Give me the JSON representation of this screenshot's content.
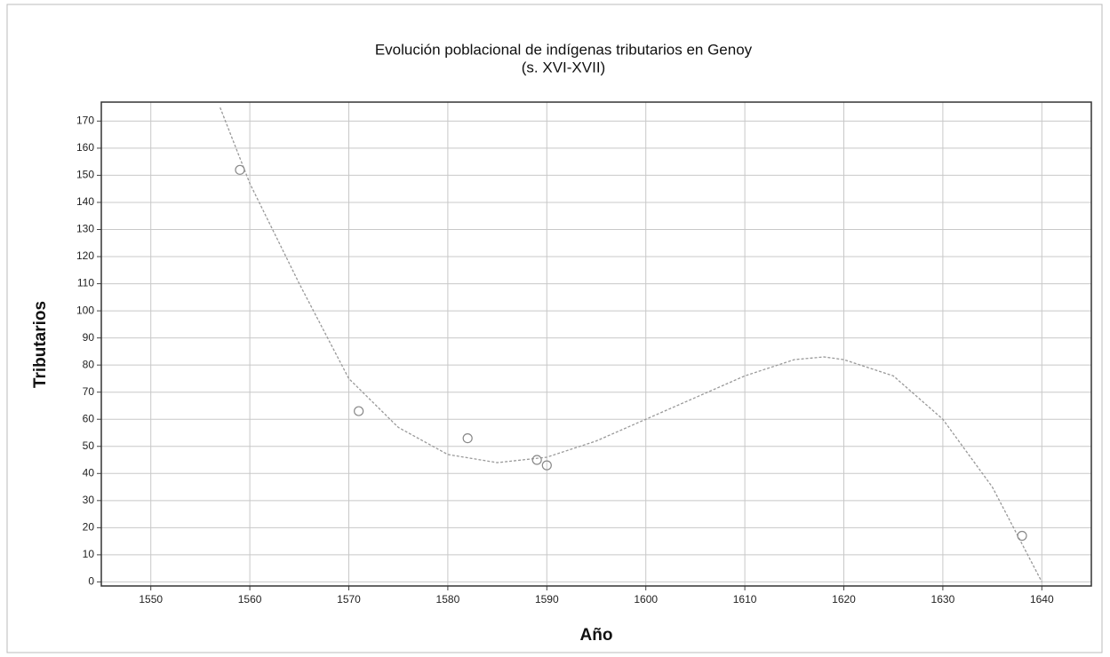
{
  "chart_data": {
    "type": "scatter",
    "title": "Evolución poblacional de indígenas tributarios en Genoy",
    "subtitle": "(s. XVI-XVII)",
    "x_label": "Año",
    "y_label": "Tributarios",
    "xlim": [
      1545,
      1645
    ],
    "xticks": [
      1550,
      1560,
      1570,
      1580,
      1590,
      1600,
      1610,
      1620,
      1630,
      1640
    ],
    "ylim": [
      -1.5,
      177
    ],
    "yticks": [
      0,
      10,
      20,
      30,
      40,
      50,
      60,
      70,
      80,
      90,
      100,
      110,
      120,
      130,
      140,
      150,
      160,
      170
    ],
    "grid": true,
    "series": [
      {
        "type": "scatter",
        "color": "#888888",
        "x": [
          1559,
          1571,
          1582,
          1589,
          1590,
          1638
        ],
        "values": [
          152,
          63,
          53,
          45,
          43,
          17
        ]
      },
      {
        "type": "line",
        "color": "#999999",
        "x": [
          1557,
          1560,
          1565,
          1570,
          1575,
          1580,
          1585,
          1590,
          1595,
          1600,
          1605,
          1610,
          1615,
          1618,
          1620,
          1625,
          1630,
          1635,
          1640
        ],
        "values": [
          175,
          147,
          110,
          75,
          57,
          47,
          44,
          46,
          52,
          60,
          68,
          76,
          82,
          83,
          82,
          76,
          60,
          35,
          0
        ]
      }
    ]
  }
}
